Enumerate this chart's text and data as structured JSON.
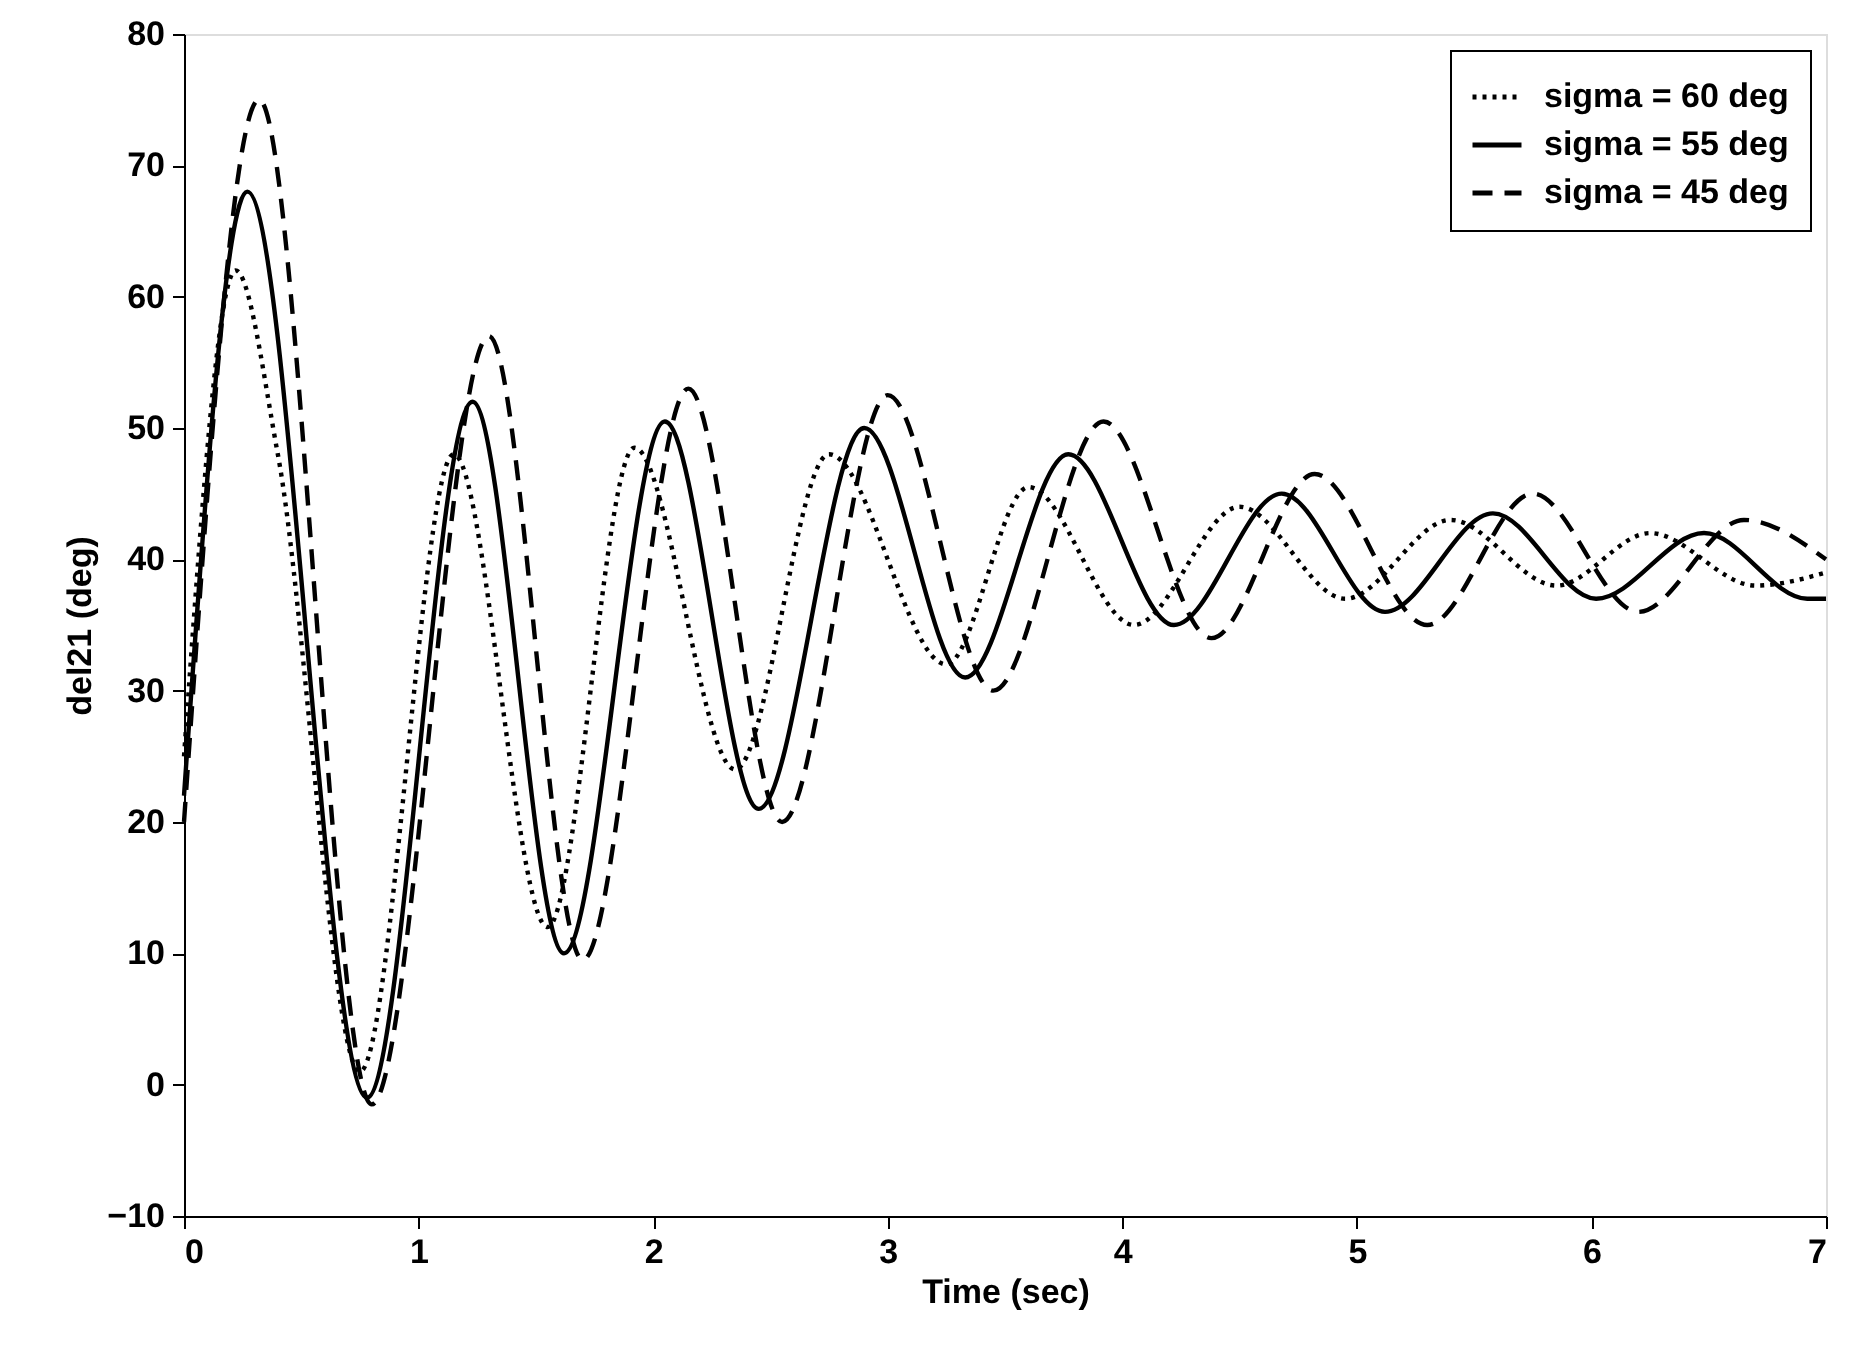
{
  "chart_data": {
    "type": "line",
    "xlabel": "Time (sec)",
    "ylabel": "del21 (deg)",
    "xlim": [
      0,
      7
    ],
    "xticks": [
      0,
      1,
      2,
      3,
      4,
      5,
      6,
      7
    ],
    "ylim": [
      -10,
      80
    ],
    "yticks": [
      -10,
      0,
      10,
      20,
      30,
      40,
      50,
      60,
      70,
      80
    ],
    "grid": false,
    "legend": "top right",
    "series": [
      {
        "name": "sigma = 60 deg",
        "color": "#000000",
        "line_style": "dotted",
        "x": [
          0,
          0.22,
          0.4,
          0.75,
          1.15,
          1.55,
          1.92,
          2.35,
          2.75,
          3.25,
          3.6,
          4.05,
          4.5,
          4.95,
          5.4,
          5.85,
          6.25,
          6.7,
          7
        ],
        "values": [
          25,
          62,
          48,
          1,
          48,
          12,
          48.5,
          24,
          48,
          32,
          45.5,
          35,
          44,
          37,
          43,
          38,
          42,
          38,
          39
        ]
      },
      {
        "name": "sigma = 55 deg",
        "color": "#000000",
        "line_style": "solid",
        "x": [
          0,
          0.27,
          0.78,
          1.23,
          1.62,
          2.05,
          2.45,
          2.9,
          3.33,
          3.77,
          4.22,
          4.68,
          5.12,
          5.58,
          6.02,
          6.48,
          6.92,
          7
        ],
        "values": [
          22,
          68,
          -1,
          52,
          10,
          50.5,
          21,
          50,
          31,
          48,
          35,
          45,
          36,
          43.5,
          37,
          42,
          37,
          37
        ]
      },
      {
        "name": "sigma = 45 deg",
        "color": "#000000",
        "line_style": "dashed",
        "x": [
          0,
          0.32,
          0.8,
          1.3,
          1.7,
          2.15,
          2.55,
          3.0,
          3.45,
          3.92,
          4.38,
          4.82,
          5.3,
          5.75,
          6.2,
          6.65,
          7
        ],
        "values": [
          20,
          75,
          -1.5,
          57,
          9.5,
          53,
          20,
          52.5,
          30,
          50.5,
          34,
          46.5,
          35,
          45,
          36,
          43,
          40
        ]
      }
    ]
  }
}
